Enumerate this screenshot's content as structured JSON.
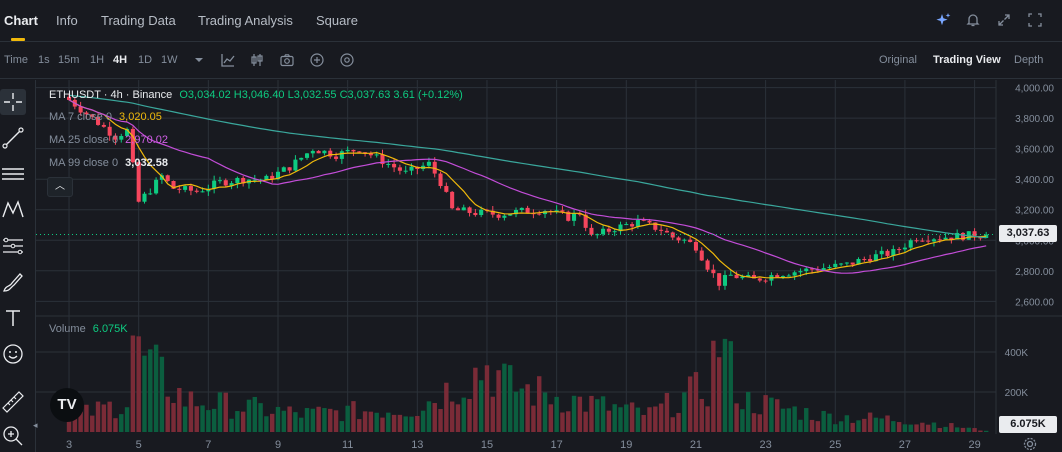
{
  "nav": {
    "tabs": [
      "Chart",
      "Info",
      "Trading Data",
      "Trading Analysis",
      "Square"
    ],
    "active": "Chart"
  },
  "toolbar": {
    "time_label": "Time",
    "intervals": [
      "1s",
      "15m",
      "1H",
      "4H",
      "1D",
      "1W"
    ],
    "active_interval": "4H",
    "views": [
      "Original",
      "Trading View",
      "Depth"
    ],
    "active_view": "Trading View"
  },
  "legend": {
    "symbol": "ETHUSDT · 4h · Binance",
    "ohlc": "O3,034.02 H3,046.40 L3,032.55 C3,037.63 3.61 (+0.12%)",
    "ma7_label": "MA 7 close 0",
    "ma7_value": "3,020.05",
    "ma25_label": "MA 25 close 0",
    "ma25_value": "2,970.02",
    "ma99_label": "MA 99 close 0",
    "ma99_value": "3,032.58",
    "volume_label": "Volume",
    "volume_value": "6.075K"
  },
  "colors": {
    "up": "#0ecb81",
    "down": "#f6465d",
    "vol_up": "#0b5e3f",
    "vol_down": "#7a2b37",
    "ma7": "#f0b90b",
    "ma25": "#c34dd8",
    "ma99": "#3aa79c",
    "grid": "#2b3139",
    "axis_text": "#848e9c",
    "background": "#181a20"
  },
  "chart_data": {
    "type": "candlestick",
    "symbol": "ETHUSDT",
    "interval": "4h",
    "last_price": 3037.63,
    "last_price_label": "3,037.63",
    "price_axis": {
      "ticks": [
        4000,
        3800,
        3600,
        3400,
        3200,
        3000,
        2800,
        2600
      ],
      "tick_labels": [
        "4,000.00",
        "3,800.00",
        "3,600.00",
        "3,400.00",
        "3,200.00",
        "3,000.00",
        "2,800.00",
        "2,600.00"
      ],
      "range": [
        2530,
        4050
      ]
    },
    "volume_axis": {
      "ticks": [
        400000,
        200000
      ],
      "tick_labels": [
        "400K",
        "200K"
      ],
      "range": [
        0,
        560000
      ],
      "last_volume_label": "6.075K"
    },
    "x_axis": {
      "tick_labels": [
        "3",
        "5",
        "7",
        "9",
        "11",
        "13",
        "15",
        "17",
        "19",
        "21",
        "23",
        "25",
        "27",
        "29"
      ],
      "tick_candle_index": [
        0,
        12,
        24,
        36,
        48,
        60,
        72,
        84,
        96,
        108,
        120,
        132,
        144,
        156
      ],
      "first_candle_offset": 5
    },
    "anchors": [
      [
        0,
        3920
      ],
      [
        4,
        3800
      ],
      [
        8,
        3680
      ],
      [
        10,
        3720
      ],
      [
        12,
        3250
      ],
      [
        14,
        3330
      ],
      [
        16,
        3420
      ],
      [
        18,
        3340
      ],
      [
        22,
        3320
      ],
      [
        26,
        3380
      ],
      [
        30,
        3400
      ],
      [
        34,
        3400
      ],
      [
        38,
        3480
      ],
      [
        42,
        3600
      ],
      [
        46,
        3560
      ],
      [
        50,
        3600
      ],
      [
        54,
        3520
      ],
      [
        58,
        3440
      ],
      [
        62,
        3500
      ],
      [
        64,
        3380
      ],
      [
        66,
        3200
      ],
      [
        70,
        3180
      ],
      [
        74,
        3170
      ],
      [
        78,
        3190
      ],
      [
        82,
        3200
      ],
      [
        86,
        3150
      ],
      [
        88,
        3180
      ],
      [
        90,
        3020
      ],
      [
        94,
        3080
      ],
      [
        98,
        3120
      ],
      [
        102,
        3070
      ],
      [
        104,
        3020
      ],
      [
        106,
        3000
      ],
      [
        108,
        2960
      ],
      [
        110,
        2830
      ],
      [
        112,
        2720
      ],
      [
        114,
        2770
      ],
      [
        118,
        2740
      ],
      [
        122,
        2780
      ],
      [
        126,
        2800
      ],
      [
        130,
        2820
      ],
      [
        134,
        2840
      ],
      [
        138,
        2890
      ],
      [
        142,
        2920
      ],
      [
        146,
        3020
      ],
      [
        150,
        3020
      ],
      [
        154,
        3030
      ],
      [
        158,
        3037.63
      ]
    ],
    "volume_anchors": [
      [
        0,
        70000
      ],
      [
        10,
        150000
      ],
      [
        11,
        480000
      ],
      [
        12,
        380000
      ],
      [
        20,
        160000
      ],
      [
        40,
        90000
      ],
      [
        60,
        120000
      ],
      [
        72,
        330000
      ],
      [
        76,
        230000
      ],
      [
        90,
        140000
      ],
      [
        100,
        90000
      ],
      [
        110,
        230000
      ],
      [
        112,
        480000
      ],
      [
        116,
        160000
      ],
      [
        130,
        80000
      ],
      [
        145,
        60000
      ],
      [
        158,
        6075
      ]
    ]
  }
}
